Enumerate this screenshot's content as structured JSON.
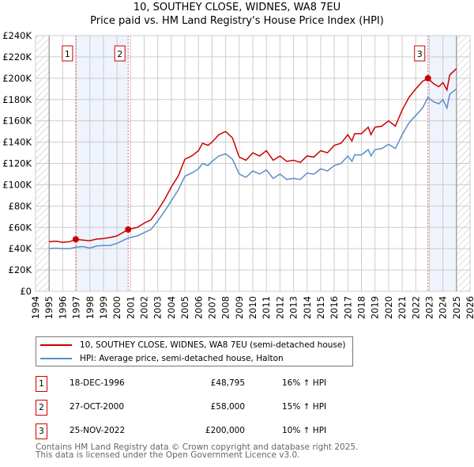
{
  "chart_data": {
    "type": "line",
    "title": "10, SOUTHEY CLOSE, WIDNES, WA8 7EU",
    "subtitle": "Price paid vs. HM Land Registry's House Price Index (HPI)",
    "xlim": [
      1994,
      2026
    ],
    "ylim": [
      0,
      240000
    ],
    "x_ticks": [
      "1994",
      "1995",
      "1996",
      "1997",
      "1998",
      "1999",
      "2000",
      "2001",
      "2002",
      "2003",
      "2004",
      "2005",
      "2006",
      "2007",
      "2008",
      "2009",
      "2010",
      "2011",
      "2012",
      "2013",
      "2014",
      "2015",
      "2016",
      "2017",
      "2018",
      "2019",
      "2020",
      "2021",
      "2022",
      "2023",
      "2024",
      "2025",
      "2026"
    ],
    "y_ticks": [
      {
        "v": 0,
        "l": "£0"
      },
      {
        "v": 20000,
        "l": "£20K"
      },
      {
        "v": 40000,
        "l": "£40K"
      },
      {
        "v": 60000,
        "l": "£60K"
      },
      {
        "v": 80000,
        "l": "£80K"
      },
      {
        "v": 100000,
        "l": "£100K"
      },
      {
        "v": 120000,
        "l": "£120K"
      },
      {
        "v": 140000,
        "l": "£140K"
      },
      {
        "v": 160000,
        "l": "£160K"
      },
      {
        "v": 180000,
        "l": "£180K"
      },
      {
        "v": 200000,
        "l": "£200K"
      },
      {
        "v": 220000,
        "l": "£220K"
      },
      {
        "v": 240000,
        "l": "£240K"
      }
    ],
    "grid": true,
    "hatched_ranges": [
      [
        1994,
        1995
      ],
      [
        2025,
        2026
      ]
    ],
    "shaded_ranges": [
      [
        1996.96,
        2000.82
      ],
      [
        2022.9,
        2025
      ]
    ],
    "series": [
      {
        "name": "10, SOUTHEY CLOSE, WIDNES, WA8 7EU (semi-detached house)",
        "color": "#cc0000",
        "x": [
          1995,
          1995.5,
          1996,
          1996.5,
          1996.96,
          1997.5,
          1998,
          1998.5,
          1999,
          1999.5,
          2000,
          2000.82,
          2001.5,
          2002,
          2002.5,
          2003,
          2003.5,
          2004,
          2004.5,
          2005,
          2005.5,
          2006,
          2006.3,
          2006.7,
          2007,
          2007.5,
          2008,
          2008.5,
          2009,
          2009.5,
          2010,
          2010.5,
          2011,
          2011.5,
          2012,
          2012.5,
          2013,
          2013.5,
          2014,
          2014.5,
          2015,
          2015.5,
          2016,
          2016.5,
          2017,
          2017.3,
          2017.5,
          2018,
          2018.5,
          2018.7,
          2019,
          2019.5,
          2020,
          2020.5,
          2021,
          2021.5,
          2022,
          2022.5,
          2022.9,
          2023.3,
          2023.7,
          2024,
          2024.3,
          2024.5,
          2025
        ],
        "y": [
          46500,
          47000,
          46000,
          46500,
          48795,
          48000,
          47500,
          49000,
          49500,
          50500,
          52000,
          58000,
          60000,
          64000,
          67000,
          76000,
          86000,
          98000,
          108000,
          124000,
          127000,
          132000,
          139000,
          137000,
          140000,
          147000,
          150000,
          144000,
          126000,
          123000,
          130000,
          127000,
          132000,
          123000,
          127000,
          122000,
          123000,
          121000,
          127000,
          126000,
          132000,
          130000,
          137000,
          139000,
          147000,
          141000,
          148000,
          148000,
          154000,
          147000,
          154000,
          155000,
          160000,
          155000,
          170000,
          182000,
          190000,
          197000,
          200000,
          195000,
          192000,
          196000,
          189000,
          203000,
          209000
        ]
      },
      {
        "name": "HPI: Average price, semi-detached house, Halton",
        "color": "#5b8ccc",
        "x": [
          1995,
          1995.5,
          1996,
          1996.5,
          1997,
          1997.5,
          1998,
          1998.5,
          1999,
          1999.5,
          2000,
          2000.82,
          2001.5,
          2002,
          2002.5,
          2003,
          2003.5,
          2004,
          2004.5,
          2005,
          2005.5,
          2006,
          2006.3,
          2006.7,
          2007,
          2007.5,
          2008,
          2008.5,
          2009,
          2009.5,
          2010,
          2010.5,
          2011,
          2011.5,
          2012,
          2012.5,
          2013,
          2013.5,
          2014,
          2014.5,
          2015,
          2015.5,
          2016,
          2016.5,
          2017,
          2017.3,
          2017.5,
          2018,
          2018.5,
          2018.7,
          2019,
          2019.5,
          2020,
          2020.5,
          2021,
          2021.5,
          2022,
          2022.5,
          2022.9,
          2023.3,
          2023.7,
          2024,
          2024.3,
          2024.5,
          2025
        ],
        "y": [
          40000,
          40500,
          40000,
          40000,
          41500,
          42000,
          40500,
          42500,
          43000,
          43000,
          45000,
          50000,
          52000,
          55000,
          58000,
          66000,
          75000,
          85000,
          95000,
          108000,
          111000,
          115000,
          120000,
          118000,
          122000,
          127000,
          129000,
          124000,
          110000,
          107000,
          113000,
          110000,
          114000,
          106000,
          110000,
          105000,
          106000,
          105000,
          111000,
          110000,
          115000,
          113000,
          118000,
          120000,
          127000,
          122000,
          128000,
          128000,
          133000,
          127000,
          133000,
          134000,
          138000,
          134000,
          147000,
          158000,
          165000,
          172000,
          182000,
          178000,
          176000,
          180000,
          172000,
          185000,
          190000
        ]
      }
    ],
    "sales": [
      {
        "label": "1",
        "x": 1996.96,
        "y": 48795
      },
      {
        "label": "2",
        "x": 2000.82,
        "y": 58000
      },
      {
        "label": "3",
        "x": 2022.9,
        "y": 200000
      }
    ],
    "legend_placement": "bottom"
  },
  "transactions": [
    {
      "num": "1",
      "date": "18-DEC-1996",
      "price": "£48,795",
      "hpi": "16% ↑ HPI"
    },
    {
      "num": "2",
      "date": "27-OCT-2000",
      "price": "£58,000",
      "hpi": "15% ↑ HPI"
    },
    {
      "num": "3",
      "date": "25-NOV-2022",
      "price": "£200,000",
      "hpi": "10% ↑ HPI"
    }
  ],
  "footer": {
    "line1": "Contains HM Land Registry data © Crown copyright and database right 2025.",
    "line2": "This data is licensed under the Open Government Licence v3.0."
  }
}
